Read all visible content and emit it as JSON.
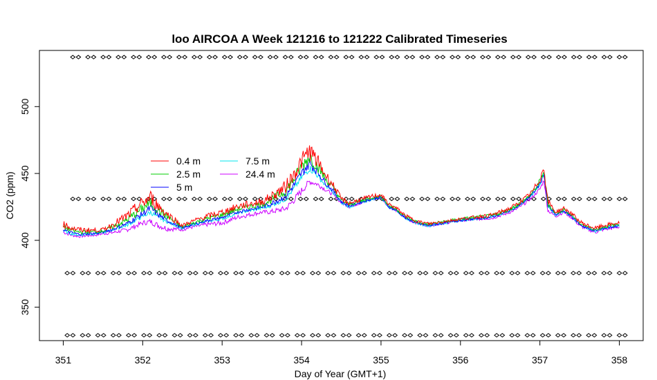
{
  "chart_data": {
    "type": "line",
    "title": "loo AIRCOA A  Week 121216 to 121222  Calibrated Timeseries",
    "xlabel": "Day of Year (GMT+1)",
    "ylabel": "CO2 (ppm)",
    "xlim": [
      350.7,
      358.3
    ],
    "ylim": [
      325,
      542
    ],
    "xticks": [
      351,
      352,
      353,
      354,
      355,
      356,
      357,
      358
    ],
    "yticks": [
      350,
      400,
      450,
      500
    ],
    "grid": false,
    "legend_position": "upper-left inside plot",
    "series": [
      {
        "name": "0.4 m",
        "color": "#FF0000"
      },
      {
        "name": "2.5 m",
        "color": "#00CD00"
      },
      {
        "name": "5 m",
        "color": "#0000FF"
      },
      {
        "name": "7.5 m",
        "color": "#00E5EE"
      },
      {
        "name": "24.4 m",
        "color": "#CC00FF"
      }
    ],
    "base_curve": {
      "x": [
        351.0,
        351.1,
        351.2,
        351.4,
        351.6,
        351.8,
        352.0,
        352.1,
        352.2,
        352.3,
        352.5,
        352.6,
        352.8,
        353.0,
        353.2,
        353.4,
        353.6,
        353.8,
        353.9,
        354.0,
        354.1,
        354.2,
        354.3,
        354.4,
        354.5,
        354.6,
        354.7,
        354.8,
        354.9,
        355.0,
        355.1,
        355.2,
        355.3,
        355.4,
        355.5,
        355.6,
        355.8,
        356.0,
        356.2,
        356.4,
        356.6,
        356.7,
        356.8,
        356.9,
        357.0,
        357.05,
        357.1,
        357.2,
        357.3,
        357.4,
        357.5,
        357.6,
        357.7,
        357.8,
        357.9,
        358.0
      ],
      "y": [
        407,
        405,
        404,
        405,
        407,
        410,
        416,
        418,
        415,
        413,
        409,
        411,
        414,
        416,
        420,
        422,
        424,
        428,
        435,
        443,
        448,
        445,
        440,
        435,
        428,
        425,
        427,
        429,
        431,
        432,
        425,
        422,
        417,
        414,
        412,
        411,
        413,
        415,
        416,
        417,
        421,
        424,
        428,
        433,
        440,
        447,
        424,
        419,
        422,
        418,
        412,
        409,
        407,
        409,
        410,
        411
      ]
    },
    "series_offsets": {
      "0.4 m": {
        "x": [
          351.0,
          351.5,
          352.0,
          352.1,
          352.3,
          352.5,
          353.0,
          353.5,
          354.0,
          354.1,
          354.3,
          354.5,
          355.0,
          356.0,
          356.9,
          357.05,
          357.2,
          358.0
        ],
        "y": [
          5,
          2,
          12,
          14,
          7,
          2,
          5,
          6,
          16,
          19,
          9,
          3,
          2,
          1,
          3,
          7,
          2,
          2
        ]
      },
      "2.5 m": {
        "x": [
          351.0,
          351.5,
          352.0,
          352.1,
          352.3,
          352.5,
          353.0,
          353.5,
          354.0,
          354.1,
          354.3,
          354.5,
          355.0,
          356.0,
          356.9,
          357.05,
          357.2,
          358.0
        ],
        "y": [
          3,
          1,
          8,
          10,
          5,
          1,
          3,
          4,
          12,
          15,
          6,
          2,
          1,
          1,
          2,
          5,
          1,
          1
        ]
      },
      "5 m": {
        "x": [
          351.0,
          351.5,
          352.0,
          352.1,
          352.3,
          352.5,
          353.0,
          353.5,
          354.0,
          354.1,
          354.3,
          354.5,
          355.0,
          356.0,
          356.9,
          357.05,
          357.2,
          358.0
        ],
        "y": [
          1,
          0,
          4,
          6,
          2,
          0,
          1,
          2,
          7,
          10,
          3,
          1,
          0,
          0,
          1,
          3,
          0,
          0
        ]
      },
      "7.5 m": {
        "x": [
          351.0,
          351.5,
          352.0,
          352.1,
          352.3,
          352.5,
          353.0,
          353.5,
          354.0,
          354.1,
          354.3,
          354.5,
          355.0,
          356.0,
          356.9,
          357.05,
          357.2,
          358.0
        ],
        "y": [
          0,
          0,
          2,
          3,
          1,
          0,
          0,
          1,
          4,
          6,
          1,
          0,
          0,
          0,
          1,
          2,
          0,
          0
        ]
      },
      "24.4 m": {
        "x": [
          351.0,
          351.5,
          352.0,
          352.1,
          352.3,
          352.5,
          353.0,
          353.5,
          354.0,
          354.1,
          354.3,
          354.5,
          355.0,
          356.0,
          356.9,
          357.05,
          357.2,
          358.0
        ],
        "y": [
          -1,
          -1,
          -3,
          -4,
          -4,
          -1,
          -3,
          -2,
          -6,
          -4,
          -2,
          0,
          0,
          0,
          -1,
          -2,
          -1,
          -1
        ]
      }
    },
    "marker_rows": [
      {
        "y": 537,
        "x_start": 351.12,
        "x_end": 358.0,
        "count": 37,
        "symbol": "diamond"
      },
      {
        "y": 431,
        "x_start": 351.12,
        "x_end": 358.0,
        "count": 37,
        "symbol": "diamond"
      },
      {
        "y": 375.5,
        "x_start": 351.05,
        "x_end": 358.0,
        "count": 37,
        "symbol": "diamond"
      },
      {
        "y": 329,
        "x_start": 351.05,
        "x_end": 358.0,
        "count": 37,
        "symbol": "diamond"
      }
    ]
  }
}
